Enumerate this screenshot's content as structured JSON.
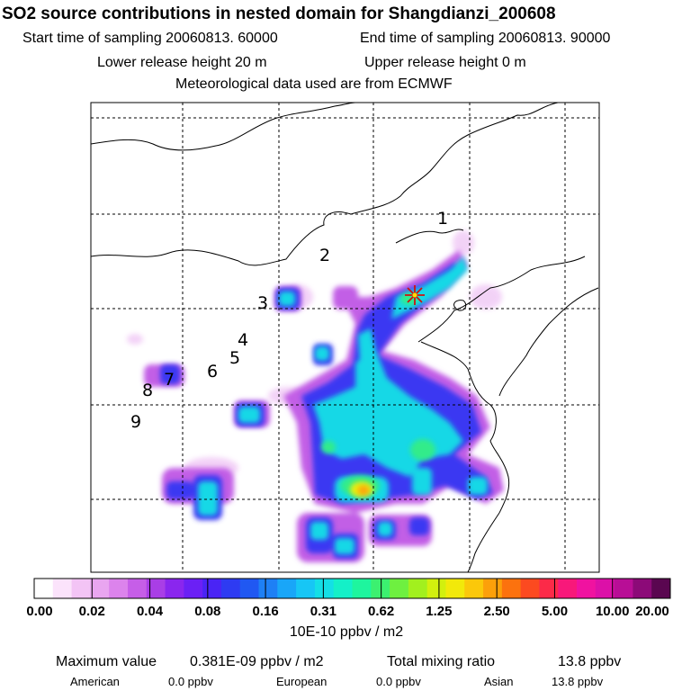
{
  "header": {
    "title": "SO2 source contributions in nested domain for Shangdianzi_200608",
    "start_time": "Start time of sampling 20060813. 60000",
    "end_time": "End time of sampling 20060813. 90000",
    "lower_height": "Lower release height   20 m",
    "upper_height": "Upper release height    0 m",
    "met_data": "Meteorological data used are from ECMWF"
  },
  "region_labels": [
    "1",
    "2",
    "3",
    "4",
    "5",
    "6",
    "7",
    "8",
    "9"
  ],
  "colorbar": {
    "unit": "10E-10 ppbv / m2",
    "tick_labels": [
      "0.00",
      "0.02",
      "0.04",
      "0.08",
      "0.16",
      "0.31",
      "0.62",
      "1.25",
      "2.50",
      "5.00",
      "10.00",
      "20.00"
    ],
    "colors": [
      "#ffffff",
      "#fbe3fb",
      "#f3c4f5",
      "#e9a5f0",
      "#dc83ec",
      "#c65ee8",
      "#a93ee6",
      "#8a26ee",
      "#6b20f5",
      "#4a24f5",
      "#2e3bf2",
      "#2058f2",
      "#1e80f5",
      "#19a6f8",
      "#17c6f5",
      "#14dfe6",
      "#14f0c8",
      "#1ef59e",
      "#3cf070",
      "#6ef040",
      "#a2f01e",
      "#d2f00e",
      "#f2e90a",
      "#fbc80a",
      "#fca00a",
      "#fc720e",
      "#fc4a20",
      "#fc2a48",
      "#f8187a",
      "#f012a0",
      "#dc10a8",
      "#b80e96",
      "#8c0a78",
      "#5a0650"
    ]
  },
  "chart_data": {
    "type": "heatmap",
    "title": "SO2 source contributions in nested domain for Shangdianzi_200608",
    "colorbar_label": "10E-10 ppbv / m2",
    "colorbar_ticks": [
      0.0,
      0.02,
      0.04,
      0.08,
      0.16,
      0.31,
      0.62,
      1.25,
      2.5,
      5.0,
      10.0,
      20.0
    ],
    "receptor": "Shangdianzi",
    "grid": true,
    "peak_value": 0.381,
    "notes": "Highest contribution (~1.25-2.50) south-central; cyan band 0.16-0.62 stretching NE toward receptor"
  },
  "footer": {
    "max_label": "Maximum value",
    "max_value": "0.381E-09 ppbv / m2",
    "total_label": "Total mixing ratio",
    "total_value": "13.8 ppbv",
    "american_label": "American",
    "american_value": "0.0 ppbv",
    "european_label": "European",
    "european_value": "0.0 ppbv",
    "asian_label": "Asian",
    "asian_value": "13.8 ppbv"
  }
}
